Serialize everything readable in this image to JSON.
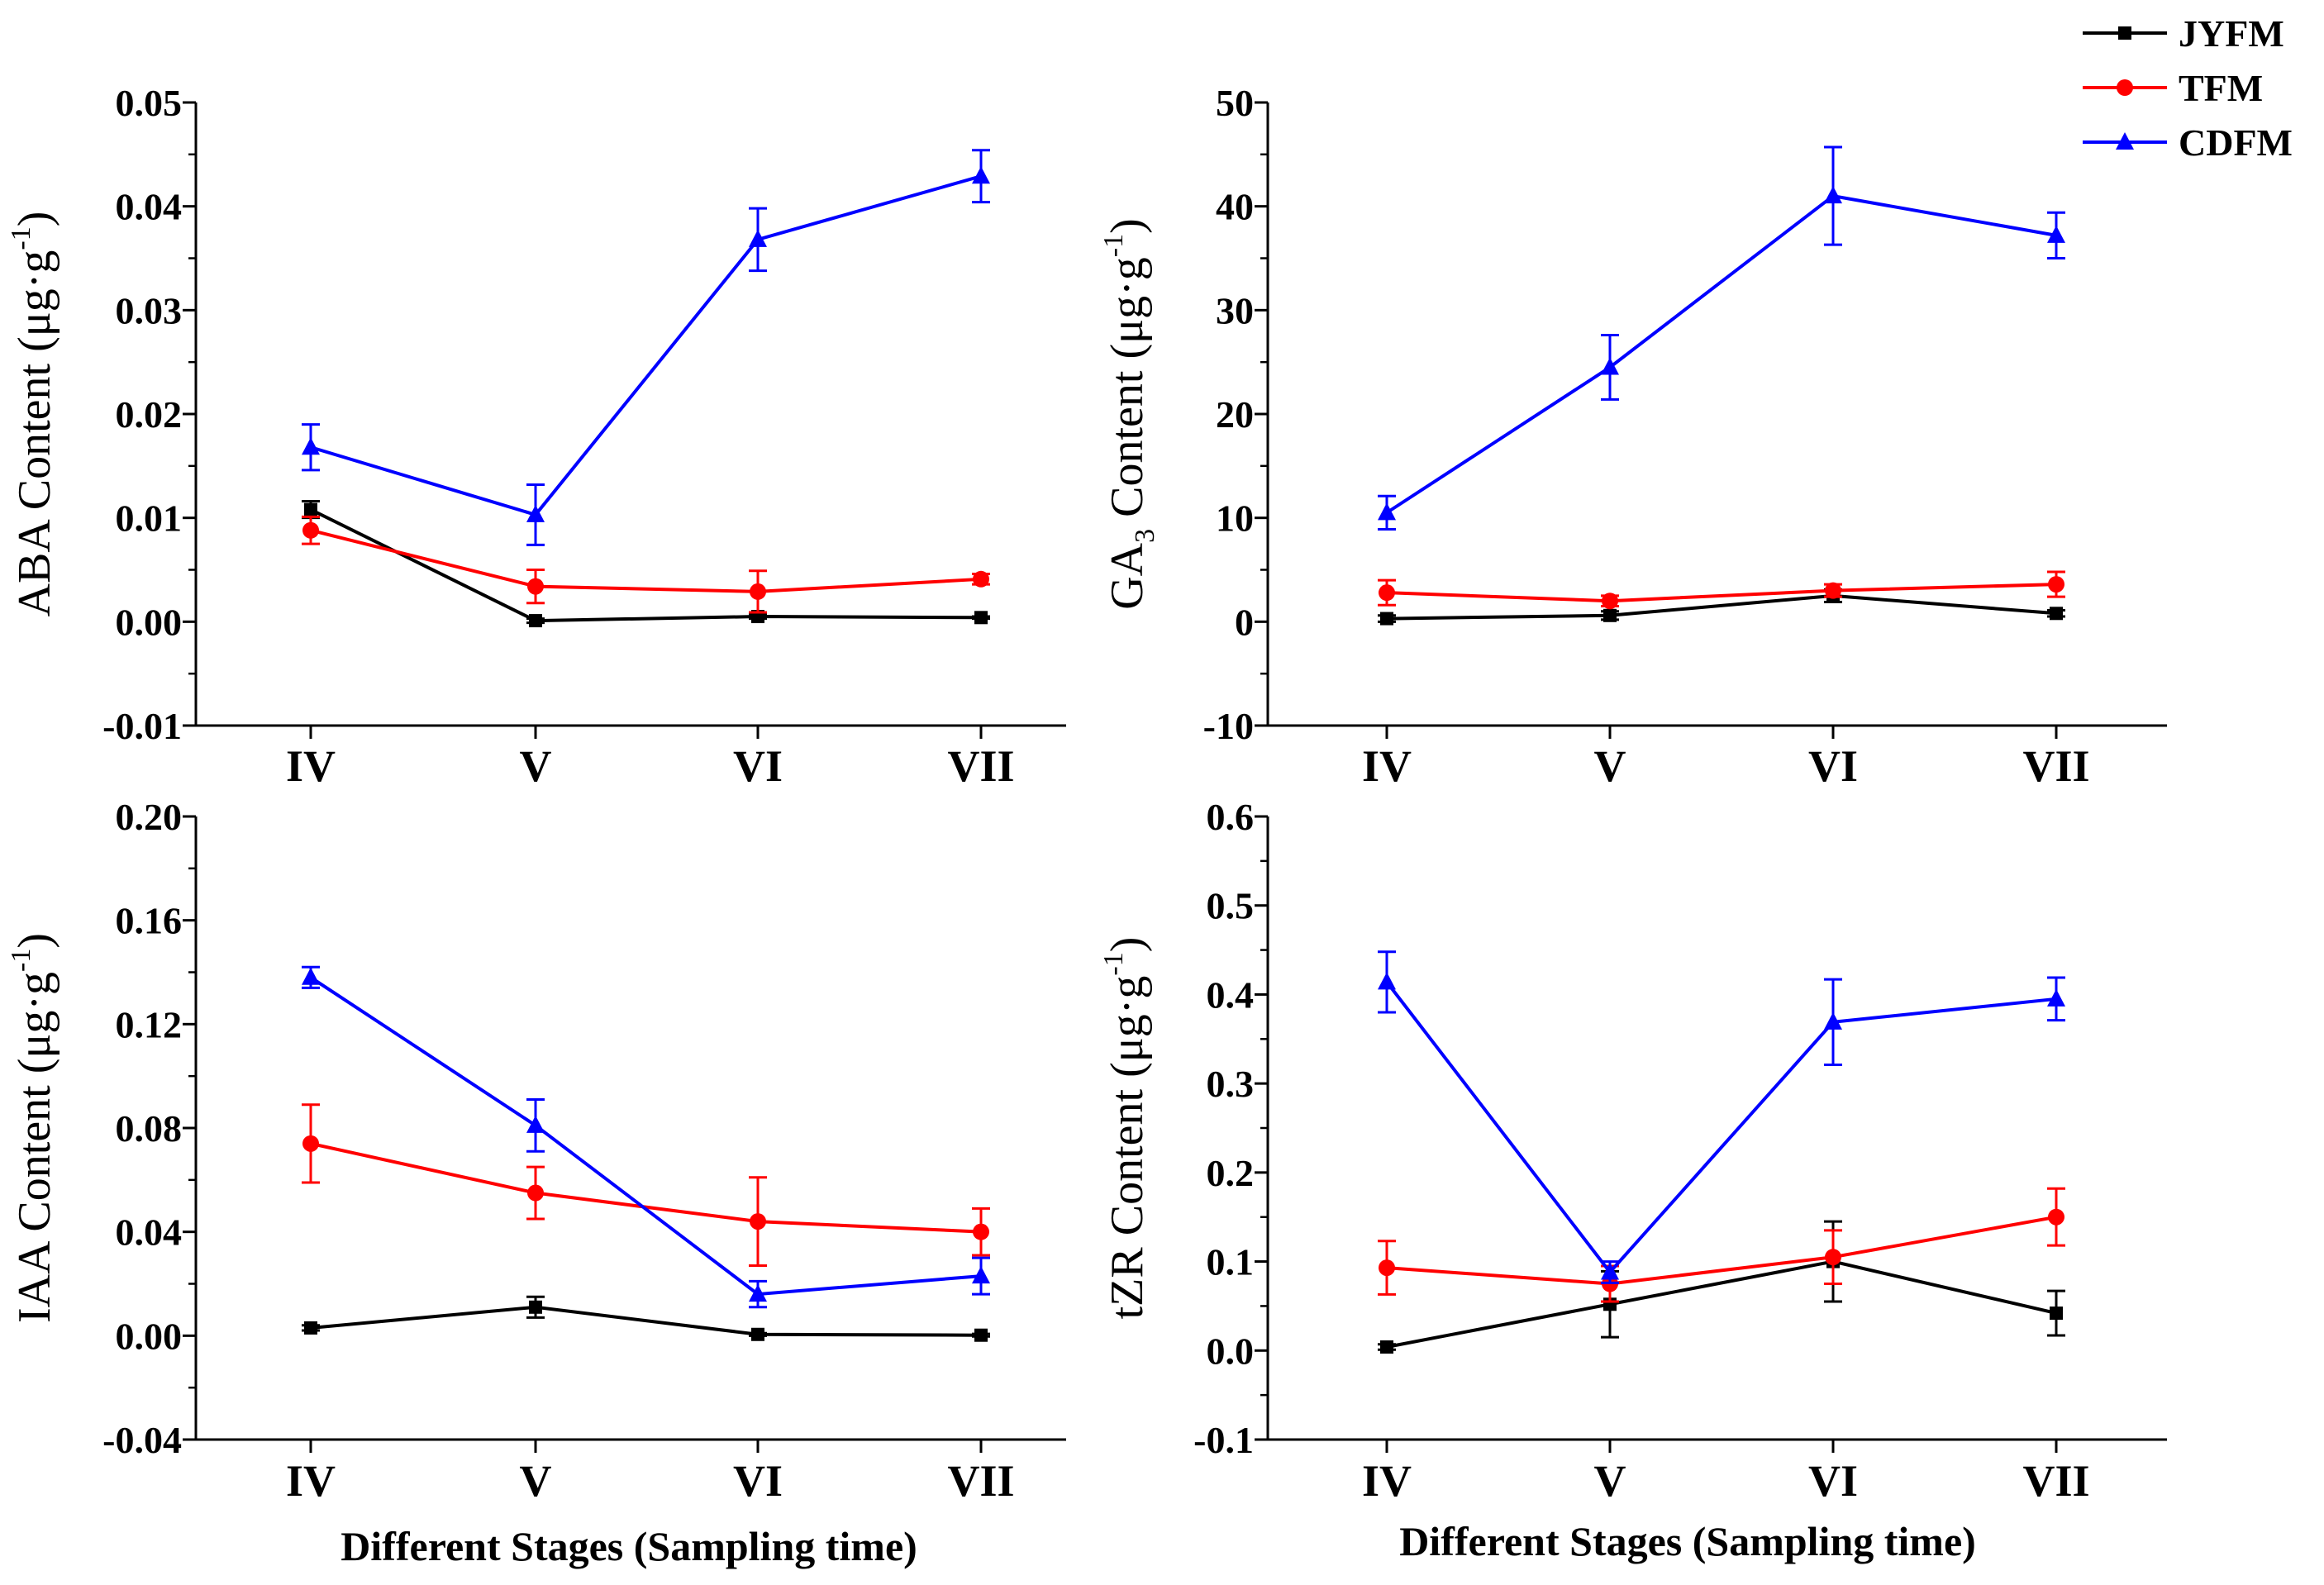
{
  "colors": {
    "JYFM": "#000000",
    "TFM": "#ff0000",
    "CDFM": "#0000ff",
    "axis": "#000000"
  },
  "legend": [
    {
      "name": "JYFM",
      "marker": "square"
    },
    {
      "name": "TFM",
      "marker": "circle"
    },
    {
      "name": "CDFM",
      "marker": "triangle"
    }
  ],
  "x_axis_titles": [
    "Different Stages (Sampling time)",
    "Different Stages  (Sampling time)"
  ],
  "chart_data": [
    {
      "id": "aba",
      "type": "line",
      "ylabel": {
        "prefix": "ABA Content (μg·g",
        "sup": "-1",
        "suffix": ")"
      },
      "categories": [
        "IV",
        "V",
        "VI",
        "VII"
      ],
      "ylim": [
        -0.01,
        0.05
      ],
      "yticks": [
        -0.01,
        0.0,
        0.01,
        0.02,
        0.03,
        0.04,
        0.05
      ],
      "ytick_labels": [
        "-0.01",
        "0.00",
        "0.01",
        "0.02",
        "0.03",
        "0.04",
        "0.05"
      ],
      "series": [
        {
          "name": "JYFM",
          "values": [
            0.0108,
            0.0001,
            0.0005,
            0.0004
          ],
          "errors": [
            0.0008,
            0.0002,
            0.0002,
            0.0001
          ]
        },
        {
          "name": "TFM",
          "values": [
            0.0088,
            0.0034,
            0.0029,
            0.0041
          ],
          "errors": [
            0.0013,
            0.0016,
            0.002,
            0.0005
          ]
        },
        {
          "name": "CDFM",
          "values": [
            0.0168,
            0.0103,
            0.0368,
            0.0429
          ],
          "errors": [
            0.0022,
            0.0029,
            0.003,
            0.0025
          ]
        }
      ]
    },
    {
      "id": "ga3",
      "type": "line",
      "ylabel": {
        "prefix": "GA",
        "sub": "3",
        "middle": " Content (μg·g",
        "sup": "-1",
        "suffix": ")"
      },
      "categories": [
        "IV",
        "V",
        "VI",
        "VII"
      ],
      "ylim": [
        -10,
        50
      ],
      "yticks": [
        -10,
        0,
        10,
        20,
        30,
        40,
        50
      ],
      "ytick_labels": [
        "-10",
        "0",
        "10",
        "20",
        "30",
        "40",
        "50"
      ],
      "series": [
        {
          "name": "JYFM",
          "values": [
            0.3,
            0.6,
            2.5,
            0.8
          ],
          "errors": [
            0.3,
            0.4,
            0.6,
            0.3
          ]
        },
        {
          "name": "TFM",
          "values": [
            2.8,
            2.0,
            3.0,
            3.6
          ],
          "errors": [
            1.2,
            0.5,
            0.6,
            1.2
          ]
        },
        {
          "name": "CDFM",
          "values": [
            10.5,
            24.5,
            41.0,
            37.2
          ],
          "errors": [
            1.6,
            3.1,
            4.7,
            2.2
          ]
        }
      ]
    },
    {
      "id": "iaa",
      "type": "line",
      "ylabel": {
        "prefix": "IAA Content (μg·g",
        "sup": "-1",
        "suffix": ")"
      },
      "categories": [
        "IV",
        "V",
        "VI",
        "VII"
      ],
      "ylim": [
        -0.04,
        0.2
      ],
      "yticks": [
        -0.04,
        0.0,
        0.04,
        0.08,
        0.12,
        0.16,
        0.2
      ],
      "ytick_labels": [
        "-0.04",
        "0.00",
        "0.04",
        "0.08",
        "0.12",
        "0.16",
        "0.20"
      ],
      "series": [
        {
          "name": "JYFM",
          "values": [
            0.003,
            0.011,
            0.0005,
            0.0002
          ],
          "errors": [
            0.001,
            0.004,
            0.0005,
            0.0005
          ]
        },
        {
          "name": "TFM",
          "values": [
            0.074,
            0.055,
            0.044,
            0.04
          ],
          "errors": [
            0.015,
            0.01,
            0.017,
            0.009
          ]
        },
        {
          "name": "CDFM",
          "values": [
            0.138,
            0.081,
            0.016,
            0.023
          ],
          "errors": [
            0.004,
            0.01,
            0.005,
            0.007
          ]
        }
      ]
    },
    {
      "id": "tzr",
      "type": "line",
      "ylabel": {
        "prefix": "tZR Content (μg·g",
        "sup": "-1",
        "suffix": ")"
      },
      "categories": [
        "IV",
        "V",
        "VI",
        "VII"
      ],
      "ylim": [
        -0.1,
        0.6
      ],
      "yticks": [
        -0.1,
        0.0,
        0.1,
        0.2,
        0.3,
        0.4,
        0.5,
        0.6
      ],
      "ytick_labels": [
        "-0.1",
        "0.0",
        "0.1",
        "0.2",
        "0.3",
        "0.4",
        "0.5",
        "0.6"
      ],
      "series": [
        {
          "name": "JYFM",
          "values": [
            0.004,
            0.052,
            0.1,
            0.042
          ],
          "errors": [
            0.003,
            0.037,
            0.045,
            0.025
          ]
        },
        {
          "name": "TFM",
          "values": [
            0.093,
            0.075,
            0.105,
            0.15
          ],
          "errors": [
            0.03,
            0.02,
            0.03,
            0.032
          ]
        },
        {
          "name": "CDFM",
          "values": [
            0.414,
            0.088,
            0.369,
            0.395
          ],
          "errors": [
            0.034,
            0.012,
            0.048,
            0.024
          ]
        }
      ]
    }
  ]
}
